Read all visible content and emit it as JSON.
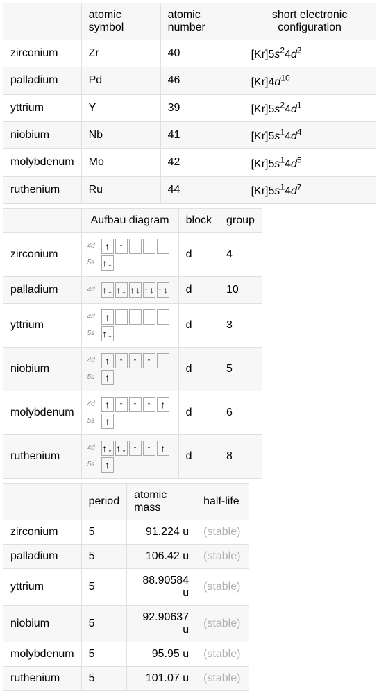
{
  "table1": {
    "headers": [
      "",
      "atomic symbol",
      "atomic number",
      "short electronic configuration"
    ],
    "col_widths": [
      "108px",
      "114px",
      "120px",
      "190px"
    ],
    "rows": [
      {
        "name": "zirconium",
        "symbol": "Zr",
        "number": "40",
        "config": {
          "prefix": "[Kr]5",
          "parts": [
            [
              "s",
              "2"
            ],
            [
              "4d",
              "2"
            ]
          ]
        }
      },
      {
        "name": "palladium",
        "symbol": "Pd",
        "number": "46",
        "config": {
          "prefix": "[Kr]4",
          "parts": [
            [
              "d",
              "10"
            ]
          ]
        }
      },
      {
        "name": "yttrium",
        "symbol": "Y",
        "number": "39",
        "config": {
          "prefix": "[Kr]5",
          "parts": [
            [
              "s",
              "2"
            ],
            [
              "4d",
              "1"
            ]
          ]
        }
      },
      {
        "name": "niobium",
        "symbol": "Nb",
        "number": "41",
        "config": {
          "prefix": "[Kr]5",
          "parts": [
            [
              "s",
              "1"
            ],
            [
              "4d",
              "4"
            ]
          ]
        }
      },
      {
        "name": "molybdenum",
        "symbol": "Mo",
        "number": "42",
        "config": {
          "prefix": "[Kr]5",
          "parts": [
            [
              "s",
              "1"
            ],
            [
              "4d",
              "5"
            ]
          ]
        }
      },
      {
        "name": "ruthenium",
        "symbol": "Ru",
        "number": "44",
        "config": {
          "prefix": "[Kr]5",
          "parts": [
            [
              "s",
              "1"
            ],
            [
              "4d",
              "7"
            ]
          ]
        }
      }
    ]
  },
  "table2": {
    "headers": [
      "",
      "Aufbau diagram",
      "block",
      "group"
    ],
    "col_widths": [
      "108px",
      "140px",
      "52px",
      "56px"
    ],
    "rows": [
      {
        "name": "zirconium",
        "block": "d",
        "group": "4",
        "orbitals": [
          {
            "label": "4d",
            "boxes": [
              [
                1
              ],
              [
                1
              ],
              [],
              [],
              []
            ]
          },
          {
            "label": "5s",
            "boxes": [
              [
                1,
                -1
              ]
            ]
          }
        ]
      },
      {
        "name": "palladium",
        "block": "d",
        "group": "10",
        "orbitals": [
          {
            "label": "4d",
            "boxes": [
              [
                1,
                -1
              ],
              [
                1,
                -1
              ],
              [
                1,
                -1
              ],
              [
                1,
                -1
              ],
              [
                1,
                -1
              ]
            ]
          }
        ]
      },
      {
        "name": "yttrium",
        "block": "d",
        "group": "3",
        "orbitals": [
          {
            "label": "4d",
            "boxes": [
              [
                1
              ],
              [],
              [],
              [],
              []
            ]
          },
          {
            "label": "5s",
            "boxes": [
              [
                1,
                -1
              ]
            ]
          }
        ]
      },
      {
        "name": "niobium",
        "block": "d",
        "group": "5",
        "orbitals": [
          {
            "label": "4d",
            "boxes": [
              [
                1
              ],
              [
                1
              ],
              [
                1
              ],
              [
                1
              ],
              []
            ]
          },
          {
            "label": "5s",
            "boxes": [
              [
                1
              ]
            ]
          }
        ]
      },
      {
        "name": "molybdenum",
        "block": "d",
        "group": "6",
        "orbitals": [
          {
            "label": "4d",
            "boxes": [
              [
                1
              ],
              [
                1
              ],
              [
                1
              ],
              [
                1
              ],
              [
                1
              ]
            ]
          },
          {
            "label": "5s",
            "boxes": [
              [
                1
              ]
            ]
          }
        ]
      },
      {
        "name": "ruthenium",
        "block": "d",
        "group": "8",
        "orbitals": [
          {
            "label": "4d",
            "boxes": [
              [
                1,
                -1
              ],
              [
                1,
                -1
              ],
              [
                1
              ],
              [
                1
              ],
              [
                1
              ]
            ]
          },
          {
            "label": "5s",
            "boxes": [
              [
                1
              ]
            ]
          }
        ]
      }
    ]
  },
  "table3": {
    "headers": [
      "",
      "period",
      "atomic mass",
      "half-life"
    ],
    "col_widths": [
      "108px",
      "58px",
      "100px",
      "76px"
    ],
    "rows": [
      {
        "name": "zirconium",
        "period": "5",
        "mass": "91.224 u",
        "half": "(stable)"
      },
      {
        "name": "palladium",
        "period": "5",
        "mass": "106.42 u",
        "half": "(stable)"
      },
      {
        "name": "yttrium",
        "period": "5",
        "mass": "88.90584 u",
        "half": "(stable)"
      },
      {
        "name": "niobium",
        "period": "5",
        "mass": "92.90637 u",
        "half": "(stable)"
      },
      {
        "name": "molybdenum",
        "period": "5",
        "mass": "95.95 u",
        "half": "(stable)"
      },
      {
        "name": "ruthenium",
        "period": "5",
        "mass": "101.07 u",
        "half": "(stable)"
      }
    ]
  },
  "styling": {
    "border_color": "#e0e0e0",
    "alt_row_bg": "#f7f7f7",
    "stable_color": "#b0b0b0",
    "box_border": "#aaa",
    "font_family": "Arial, sans-serif"
  }
}
